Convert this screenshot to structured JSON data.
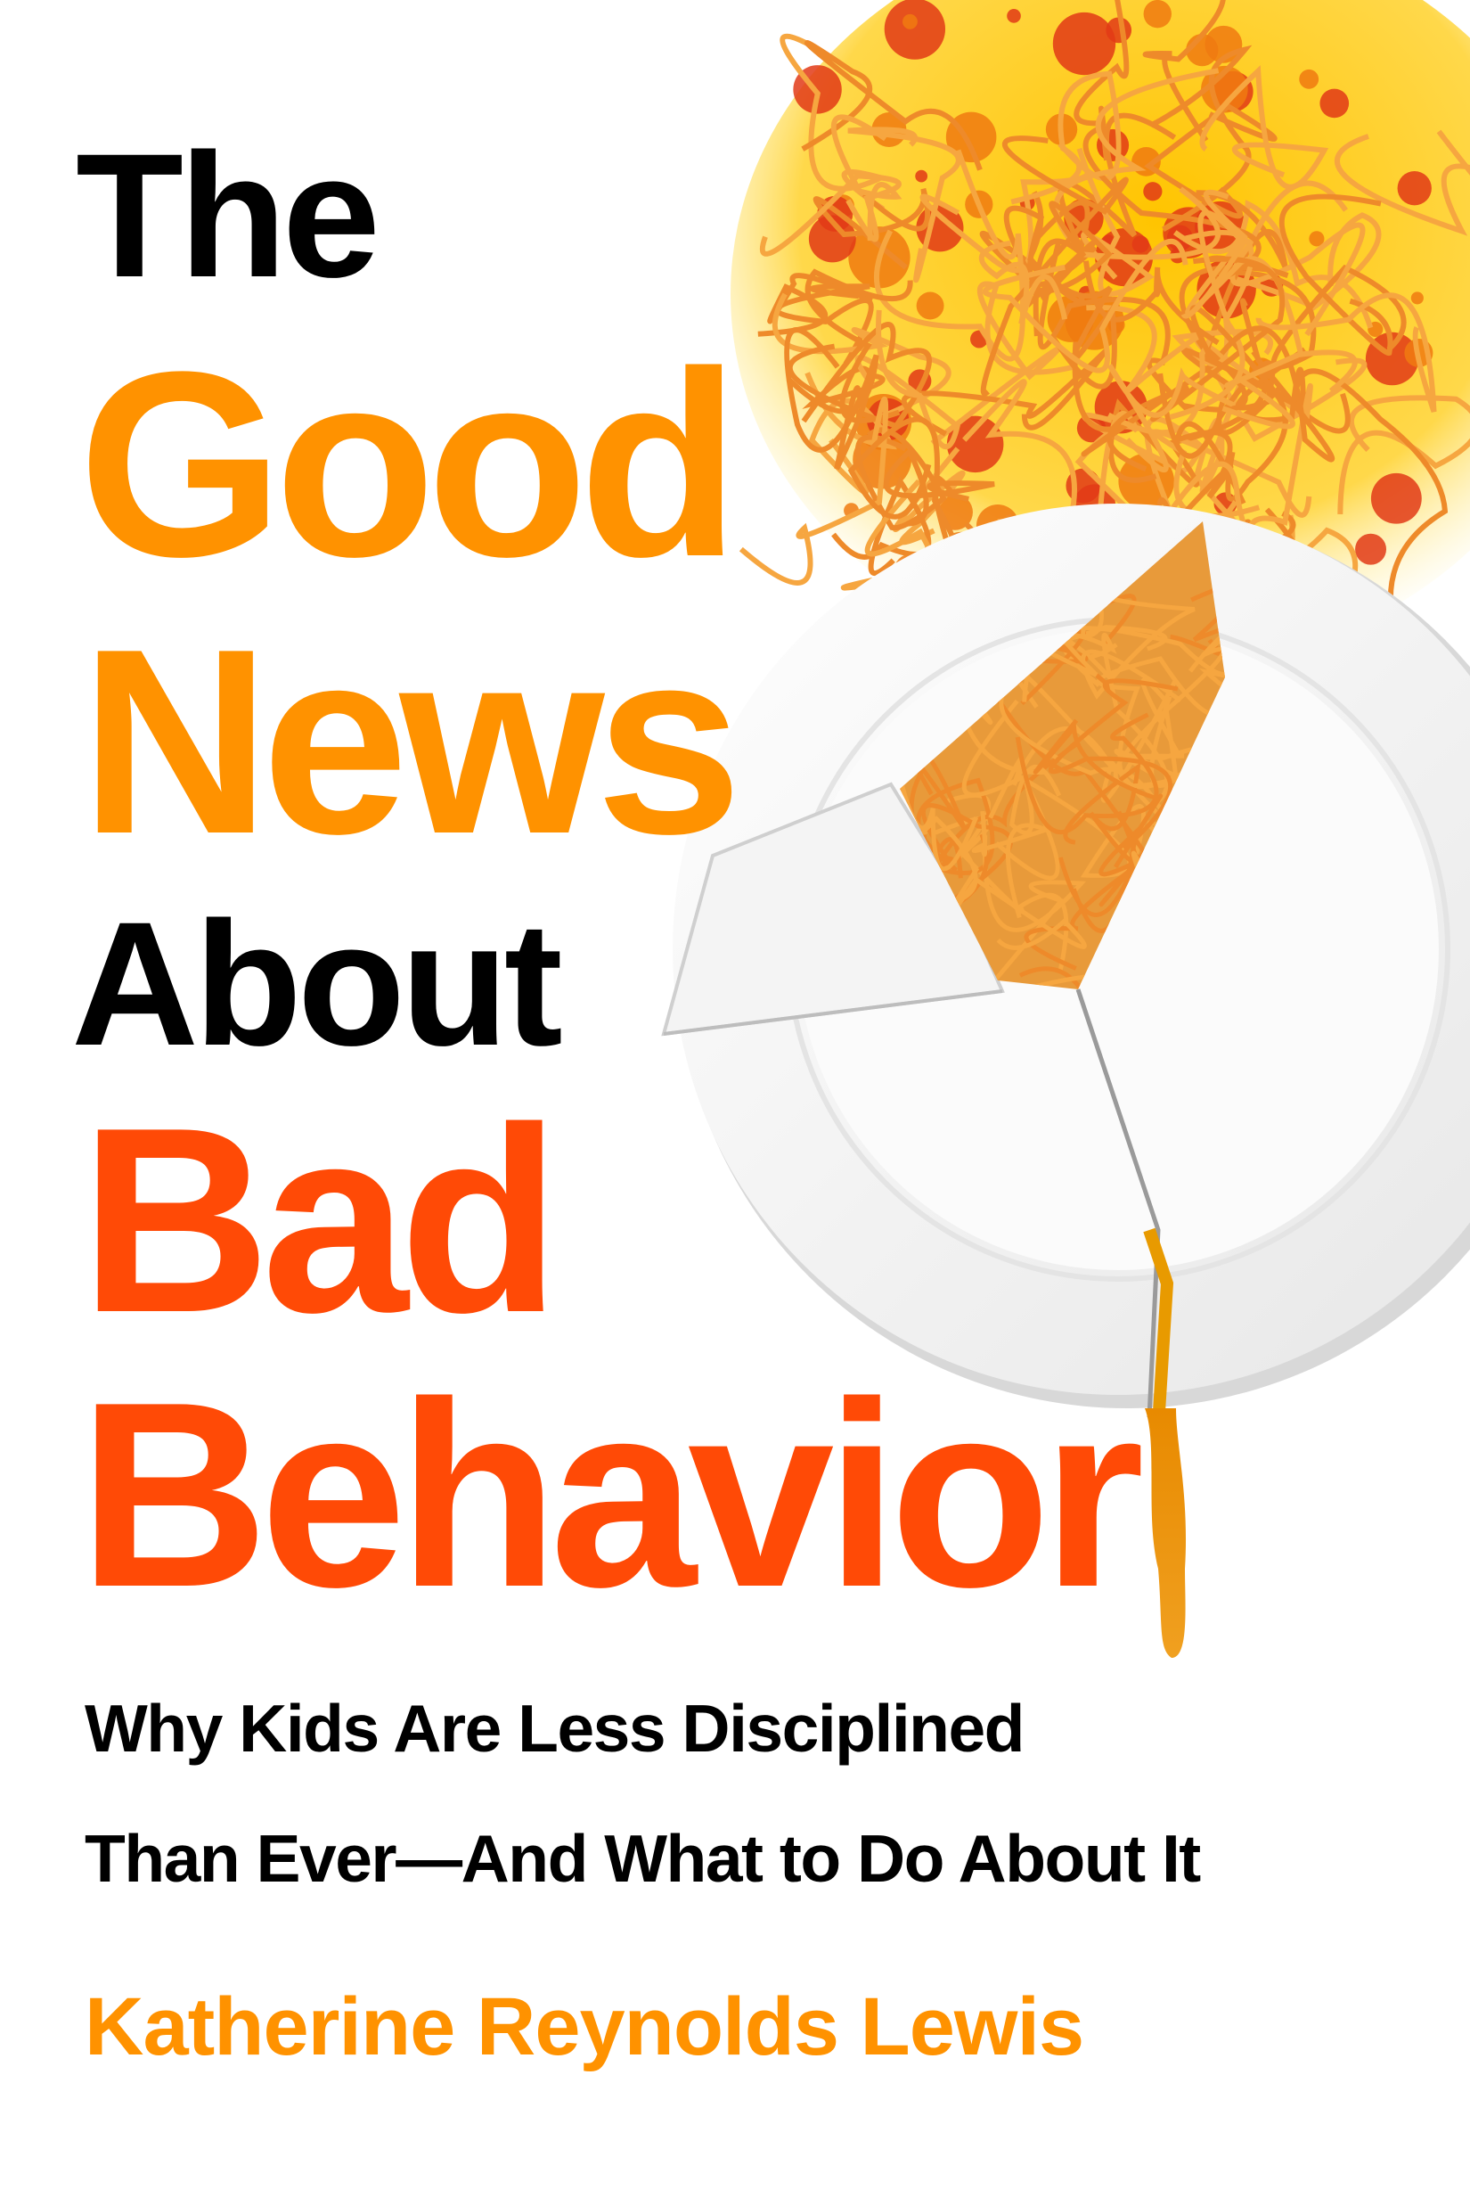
{
  "cover": {
    "title_lines": [
      "The",
      "Good",
      "News",
      "About",
      "Bad",
      "Behavior"
    ],
    "subtitle_lines": [
      "Why Kids Are Less Disciplined",
      "Than Ever—And What to Do About It"
    ],
    "author": "Katherine Reynolds Lewis"
  },
  "colors": {
    "black": "#000000",
    "orange": "#FF9200",
    "red_orange": "#FF4A06",
    "sauce": "#E8401C",
    "pasta": "#F5A623",
    "plate": "#FFFFFF"
  },
  "illustration": "broken-plate-with-spaghetti"
}
